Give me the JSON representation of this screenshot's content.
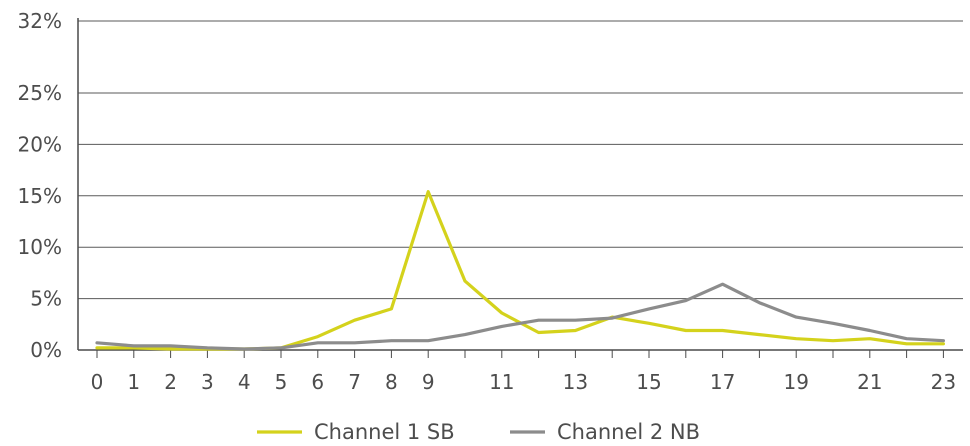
{
  "chart_data": {
    "type": "line",
    "title": "",
    "xlabel": "",
    "ylabel": "",
    "ylim": [
      0,
      32
    ],
    "y_ticks": [
      {
        "value": 0,
        "label": "0%"
      },
      {
        "value": 5,
        "label": "5%"
      },
      {
        "value": 10,
        "label": "10%"
      },
      {
        "value": 15,
        "label": "15%"
      },
      {
        "value": 20,
        "label": "20%"
      },
      {
        "value": 25,
        "label": "25%"
      },
      {
        "value": 32,
        "label": "32%"
      }
    ],
    "x": [
      0,
      1,
      2,
      3,
      4,
      5,
      6,
      7,
      8,
      9,
      10,
      11,
      12,
      13,
      14,
      15,
      16,
      17,
      18,
      19,
      20,
      21,
      22,
      23
    ],
    "x_tick_labels": [
      "0",
      "1",
      "2",
      "3",
      "4",
      "5",
      "6",
      "7",
      "8",
      "9",
      "",
      "11",
      "",
      "13",
      "",
      "15",
      "",
      "17",
      "",
      "19",
      "",
      "21",
      "",
      "23"
    ],
    "grid": "horizontal",
    "legend_position": "bottom",
    "series": [
      {
        "name": "Channel 1 SB",
        "color": "#d4d21c",
        "values": [
          0.2,
          0.2,
          0.1,
          0.1,
          0.1,
          0.2,
          1.3,
          2.9,
          4.0,
          15.4,
          6.7,
          3.6,
          1.7,
          1.9,
          3.2,
          2.6,
          1.9,
          1.9,
          1.5,
          1.1,
          0.9,
          1.1,
          0.6,
          0.6
        ]
      },
      {
        "name": "Channel 2 NB",
        "color": "#8c8c8c",
        "values": [
          0.7,
          0.4,
          0.4,
          0.2,
          0.1,
          0.2,
          0.7,
          0.7,
          0.9,
          0.9,
          1.5,
          2.3,
          2.9,
          2.9,
          3.1,
          4.0,
          4.8,
          6.4,
          4.6,
          3.2,
          2.6,
          1.9,
          1.1,
          0.9
        ]
      }
    ]
  }
}
